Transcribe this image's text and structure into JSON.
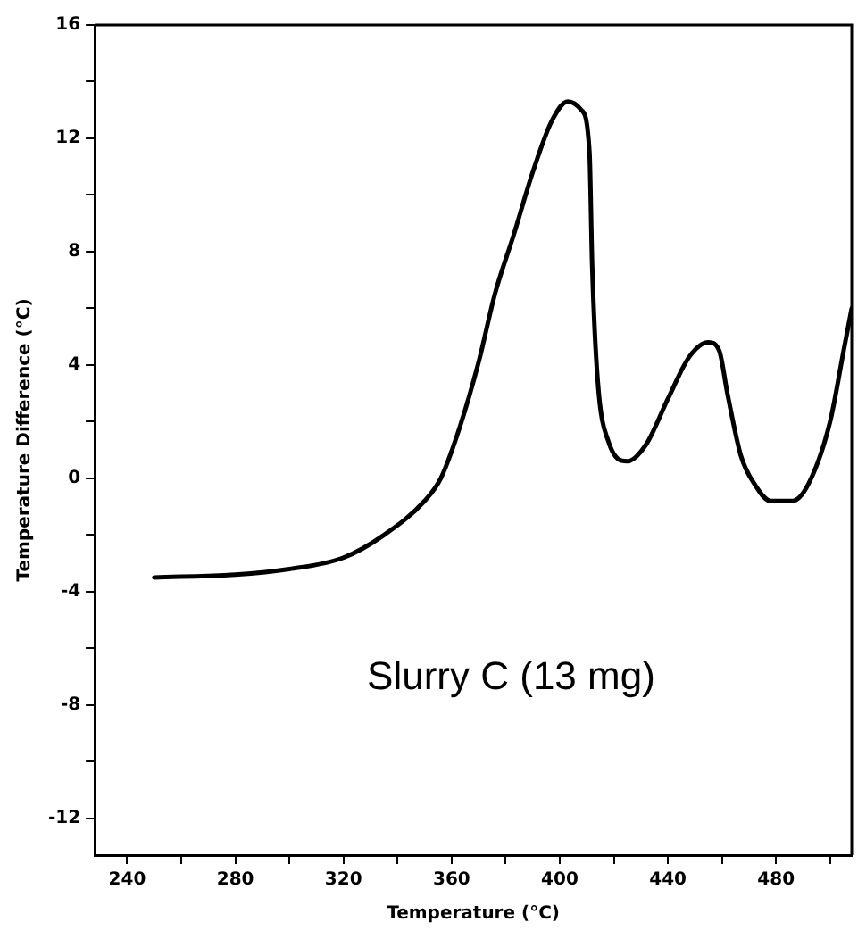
{
  "chart_data": {
    "type": "line",
    "xlabel": "Temperature (°C)",
    "ylabel": "Temperature Difference (°C)",
    "annotations": [
      "Slurry C (13 mg)"
    ],
    "x": [
      250,
      280,
      300,
      320,
      335,
      350,
      356,
      363,
      370,
      376,
      383,
      390,
      397,
      403,
      408,
      411,
      412,
      414,
      418,
      425,
      432,
      440,
      448,
      455,
      459,
      462,
      467,
      472,
      478,
      486,
      492,
      500,
      505,
      508
    ],
    "series": [
      {
        "color": "#000000",
        "values": [
          -3.5,
          -3.4,
          -3.2,
          -2.8,
          -2.0,
          -0.8,
          0,
          1.8,
          4.1,
          6.5,
          8.6,
          10.8,
          12.6,
          13.3,
          13.0,
          11.5,
          7.5,
          3.5,
          1.3,
          0.6,
          1.2,
          2.8,
          4.3,
          4.8,
          4.5,
          3,
          0.8,
          -0.2,
          -0.8,
          -0.8,
          -0.2,
          2,
          4.5,
          6
        ]
      }
    ],
    "xlim": [
      228,
      508
    ],
    "ylim": [
      -13.3,
      16
    ],
    "xticks": [
      240,
      {
        "value": 260,
        "label": null
      },
      280,
      {
        "value": 300,
        "label": null
      },
      320,
      {
        "value": 340,
        "label": null
      },
      360,
      {
        "value": 380,
        "label": null
      },
      400,
      {
        "value": 420,
        "label": null
      },
      440,
      {
        "value": 460,
        "label": null
      },
      480,
      {
        "value": 500,
        "label": null
      }
    ],
    "yticks": [
      -12,
      {
        "value": -10,
        "label": null
      },
      -8,
      {
        "value": -6,
        "label": null
      },
      -4,
      {
        "value": -2,
        "label": null
      },
      0,
      {
        "value": 2,
        "label": null
      },
      4,
      {
        "value": 6,
        "label": null
      },
      8,
      {
        "value": 10,
        "label": null
      },
      12,
      {
        "value": 14,
        "label": null
      },
      16
    ],
    "grid": false,
    "legend": false,
    "marker": "none",
    "line_style": "solid"
  }
}
